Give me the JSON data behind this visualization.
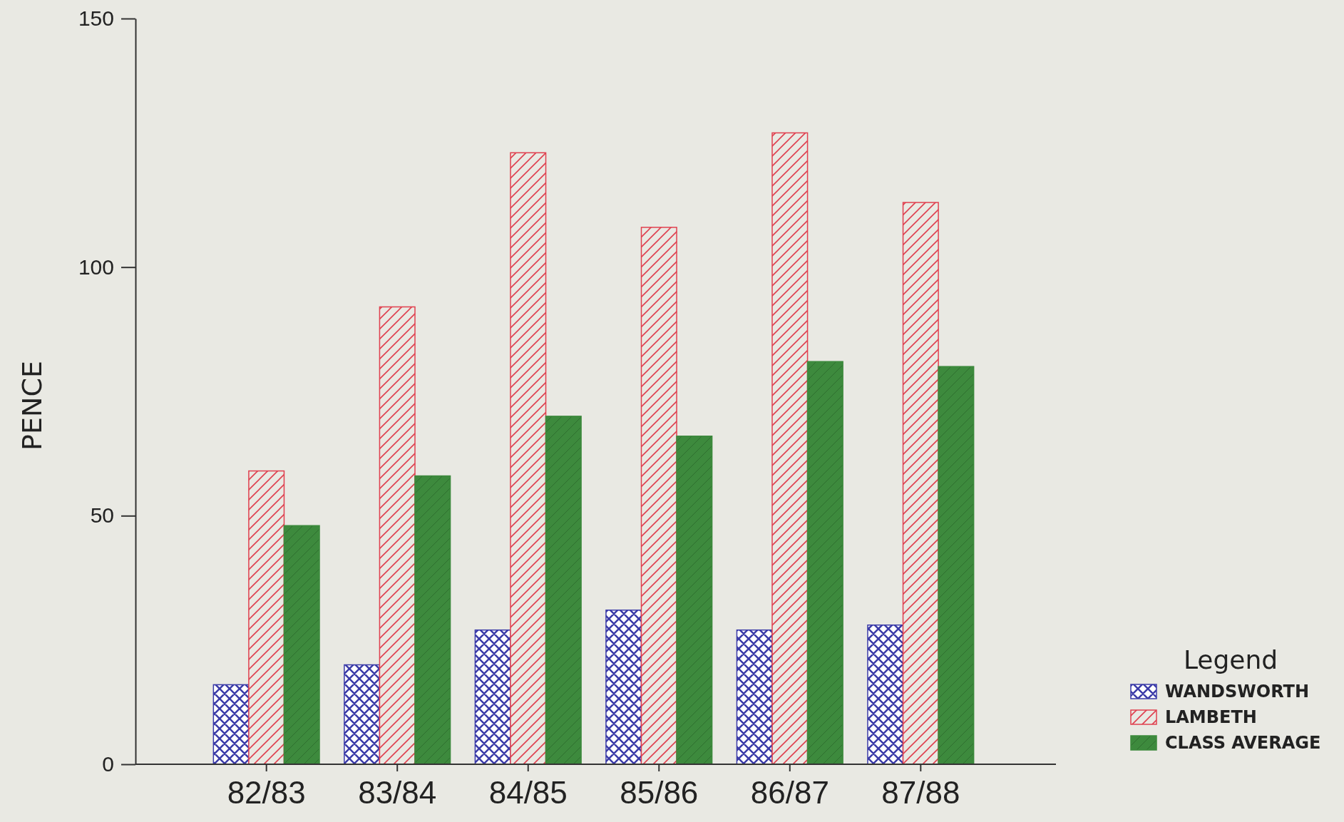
{
  "chart_data": {
    "type": "bar",
    "ylabel": "PENCE",
    "categories": [
      "82/83",
      "83/84",
      "84/85",
      "85/86",
      "86/87",
      "87/88"
    ],
    "series": [
      {
        "name": "WANDSWORTH",
        "color": "#3b3ba8",
        "values": [
          16,
          20,
          27,
          31,
          27,
          28
        ]
      },
      {
        "name": "LAMBETH",
        "color": "#e0404f",
        "values": [
          59,
          92,
          123,
          108,
          127,
          113
        ]
      },
      {
        "name": "CLASS AVERAGE",
        "color": "#3d8a3d",
        "values": [
          48,
          58,
          70,
          66,
          81,
          80
        ]
      }
    ],
    "ylim": [
      0,
      150
    ],
    "yticks": [
      0,
      50,
      100,
      150
    ],
    "grid": false,
    "legend": "bottom right",
    "legend_title": "Legend"
  }
}
